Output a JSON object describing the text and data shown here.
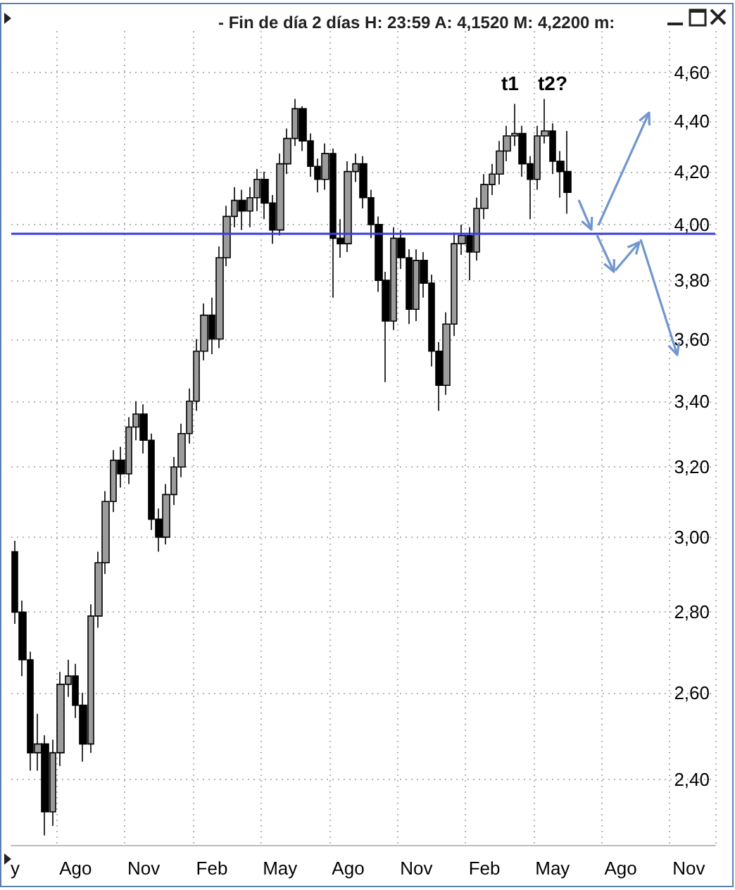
{
  "chart_data": {
    "type": "candlestick",
    "title": "- Fin de día 2 días H: 23:59 A: 4,1520 M: 4,2200 m:",
    "categories": [
      "y",
      null,
      null,
      null,
      null,
      null,
      null,
      null,
      "Ago",
      null,
      null,
      null,
      null,
      null,
      null,
      null,
      null,
      "Nov",
      null,
      null,
      null,
      null,
      null,
      null,
      null,
      null,
      "Feb",
      null,
      null,
      null,
      null,
      null,
      null,
      null,
      null,
      "May",
      null,
      null,
      null,
      null,
      null,
      null,
      null,
      null,
      "Ago",
      null,
      null,
      null,
      null,
      null,
      null,
      null,
      null,
      "Nov",
      null,
      null,
      null,
      null,
      null,
      null,
      null,
      null,
      "Feb",
      null,
      null,
      null,
      null,
      null,
      null,
      null,
      null,
      "May",
      null,
      null,
      null,
      null,
      null,
      null,
      null,
      null,
      "Ago",
      null,
      null,
      null,
      null,
      null,
      null,
      null,
      null,
      "Nov",
      null,
      null,
      null
    ],
    "ohlc": [
      [
        2.96,
        2.99,
        2.77,
        2.8
      ],
      [
        2.8,
        2.83,
        2.64,
        2.68
      ],
      [
        2.68,
        2.7,
        2.42,
        2.46
      ],
      [
        2.46,
        2.55,
        2.42,
        2.48
      ],
      [
        2.48,
        2.5,
        2.28,
        2.33
      ],
      [
        2.33,
        2.49,
        2.3,
        2.46
      ],
      [
        2.46,
        2.65,
        2.43,
        2.62
      ],
      [
        2.62,
        2.68,
        2.59,
        2.64
      ],
      [
        2.64,
        2.67,
        2.54,
        2.57
      ],
      [
        2.57,
        2.6,
        2.44,
        2.48
      ],
      [
        2.48,
        2.82,
        2.46,
        2.79
      ],
      [
        2.79,
        2.96,
        2.76,
        2.93
      ],
      [
        2.93,
        3.13,
        2.9,
        3.1
      ],
      [
        3.1,
        3.25,
        3.07,
        3.22
      ],
      [
        3.22,
        3.26,
        3.14,
        3.18
      ],
      [
        3.18,
        3.35,
        3.15,
        3.32
      ],
      [
        3.32,
        3.4,
        3.28,
        3.36
      ],
      [
        3.36,
        3.39,
        3.24,
        3.28
      ],
      [
        3.28,
        3.3,
        3.02,
        3.05
      ],
      [
        3.05,
        3.08,
        2.96,
        3.0
      ],
      [
        3.0,
        3.15,
        2.98,
        3.12
      ],
      [
        3.12,
        3.23,
        3.09,
        3.2
      ],
      [
        3.2,
        3.33,
        3.17,
        3.3
      ],
      [
        3.3,
        3.44,
        3.27,
        3.4
      ],
      [
        3.4,
        3.6,
        3.37,
        3.56
      ],
      [
        3.56,
        3.72,
        3.53,
        3.68
      ],
      [
        3.68,
        3.74,
        3.55,
        3.6
      ],
      [
        3.6,
        3.92,
        3.57,
        3.88
      ],
      [
        3.88,
        4.07,
        3.85,
        4.03
      ],
      [
        4.03,
        4.14,
        3.99,
        4.09
      ],
      [
        4.09,
        4.13,
        3.98,
        4.05
      ],
      [
        4.05,
        4.14,
        3.99,
        4.1
      ],
      [
        4.1,
        4.21,
        4.05,
        4.17
      ],
      [
        4.17,
        4.2,
        4.02,
        4.08
      ],
      [
        4.08,
        4.11,
        3.93,
        3.98
      ],
      [
        3.98,
        4.27,
        3.96,
        4.23
      ],
      [
        4.23,
        4.37,
        4.19,
        4.33
      ],
      [
        4.33,
        4.49,
        4.3,
        4.45
      ],
      [
        4.45,
        4.46,
        4.28,
        4.32
      ],
      [
        4.32,
        4.35,
        4.18,
        4.22
      ],
      [
        4.22,
        4.25,
        4.12,
        4.17
      ],
      [
        4.17,
        4.31,
        4.13,
        4.27
      ],
      [
        4.27,
        4.29,
        3.74,
        3.95
      ],
      [
        3.95,
        4.02,
        3.88,
        3.93
      ],
      [
        3.93,
        4.24,
        3.9,
        4.2
      ],
      [
        4.2,
        4.27,
        4.16,
        4.23
      ],
      [
        4.23,
        4.26,
        4.06,
        4.1
      ],
      [
        4.1,
        4.13,
        3.95,
        4.0
      ],
      [
        4.0,
        4.03,
        3.76,
        3.8
      ],
      [
        3.8,
        3.83,
        3.46,
        3.66
      ],
      [
        3.66,
        3.99,
        3.63,
        3.95
      ],
      [
        3.95,
        3.98,
        3.84,
        3.88
      ],
      [
        3.88,
        3.91,
        3.65,
        3.7
      ],
      [
        3.7,
        3.91,
        3.66,
        3.87
      ],
      [
        3.87,
        3.9,
        3.74,
        3.79
      ],
      [
        3.79,
        3.82,
        3.51,
        3.56
      ],
      [
        3.56,
        3.59,
        3.37,
        3.45
      ],
      [
        3.45,
        3.69,
        3.42,
        3.65
      ],
      [
        3.65,
        3.97,
        3.61,
        3.93
      ],
      [
        3.93,
        4.0,
        3.89,
        3.96
      ],
      [
        3.96,
        3.99,
        3.8,
        3.9
      ],
      [
        3.9,
        4.1,
        3.87,
        4.06
      ],
      [
        4.06,
        4.19,
        4.02,
        4.15
      ],
      [
        4.15,
        4.23,
        4.11,
        4.19
      ],
      [
        4.19,
        4.32,
        4.15,
        4.28
      ],
      [
        4.28,
        4.38,
        4.24,
        4.34
      ],
      [
        4.34,
        4.47,
        4.3,
        4.35
      ],
      [
        4.35,
        4.38,
        4.18,
        4.23
      ],
      [
        4.23,
        4.26,
        4.02,
        4.17
      ],
      [
        4.17,
        4.38,
        4.13,
        4.34
      ],
      [
        4.34,
        4.49,
        4.31,
        4.36
      ],
      [
        4.36,
        4.39,
        4.19,
        4.24
      ],
      [
        4.24,
        4.28,
        4.1,
        4.2
      ],
      [
        4.2,
        4.36,
        4.04,
        4.12
      ],
      null,
      null,
      null,
      null,
      null,
      null,
      null,
      null,
      null,
      null,
      null,
      null,
      null,
      null,
      null,
      null,
      null,
      null,
      null
    ],
    "ylim": [
      2.26,
      4.78
    ],
    "yticks": [
      {
        "value": 2.4,
        "label": "2,40"
      },
      {
        "value": 2.6,
        "label": "2,60"
      },
      {
        "value": 2.8,
        "label": "2,80"
      },
      {
        "value": 3.0,
        "label": "3,00"
      },
      {
        "value": 3.2,
        "label": "3,20"
      },
      {
        "value": 3.4,
        "label": "3,40"
      },
      {
        "value": 3.6,
        "label": "3,60"
      },
      {
        "value": 3.8,
        "label": "3,80"
      },
      {
        "value": 4.0,
        "label": "4,00"
      },
      {
        "value": 4.2,
        "label": "4,20"
      },
      {
        "value": 4.4,
        "label": "4,40"
      },
      {
        "value": 4.6,
        "label": "4,60"
      }
    ],
    "log": true,
    "grid": true,
    "ref_lines": [
      {
        "axis": "y",
        "value": 3.97,
        "color": "#3a3ae0"
      }
    ],
    "annotations": [
      "t1",
      "t2?"
    ]
  }
}
